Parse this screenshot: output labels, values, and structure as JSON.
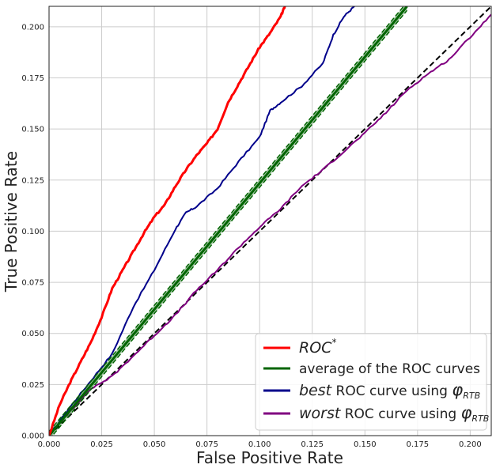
{
  "chart_data": {
    "type": "line",
    "title": "",
    "xlabel": "False Positive Rate",
    "ylabel": "True Positive Rate",
    "xlim": [
      0,
      0.21
    ],
    "ylim": [
      0,
      0.21
    ],
    "xticks": [
      "0.000",
      "0.025",
      "0.050",
      "0.075",
      "0.100",
      "0.125",
      "0.150",
      "0.175",
      "0.200"
    ],
    "yticks": [
      "0.000",
      "0.025",
      "0.050",
      "0.075",
      "0.100",
      "0.125",
      "0.150",
      "0.175",
      "0.200"
    ],
    "grid": true,
    "legend_position": "lower-right",
    "series": [
      {
        "name": "ROC*",
        "legend": [
          {
            "t": "ROC",
            "style": "it"
          },
          {
            "t": "*",
            "style": "sup"
          }
        ],
        "color": "#ff0000",
        "width": 3,
        "x": [
          0,
          0.005,
          0.01,
          0.015,
          0.02,
          0.025,
          0.03,
          0.035,
          0.04,
          0.045,
          0.05,
          0.055,
          0.06,
          0.065,
          0.07,
          0.075,
          0.08,
          0.085,
          0.09,
          0.095,
          0.1,
          0.105,
          0.11,
          0.112
        ],
        "y": [
          0,
          0.015,
          0.026,
          0.036,
          0.046,
          0.058,
          0.072,
          0.081,
          0.09,
          0.099,
          0.107,
          0.113,
          0.122,
          0.13,
          0.137,
          0.143,
          0.15,
          0.163,
          0.172,
          0.181,
          0.19,
          0.197,
          0.205,
          0.21
        ]
      },
      {
        "name": "average of the ROC curves",
        "legend": [
          {
            "t": "average of the ROC curves",
            "style": ""
          }
        ],
        "color": "#006400",
        "width": 3,
        "band": 0.002,
        "x": [
          0,
          0.02,
          0.04,
          0.06,
          0.08,
          0.1,
          0.12,
          0.14,
          0.16,
          0.17
        ],
        "y": [
          0,
          0.0247,
          0.0494,
          0.0741,
          0.0988,
          0.1235,
          0.1482,
          0.1729,
          0.1976,
          0.21
        ]
      },
      {
        "name": "best ROC curve using phi_RTB",
        "legend": [
          {
            "t": "best",
            "style": "it"
          },
          {
            "t": " ROC curve using ",
            "style": ""
          },
          {
            "t": "φ",
            "style": "it"
          },
          {
            "t": "RTB",
            "style": "sub"
          }
        ],
        "color": "#00008b",
        "width": 2,
        "x": [
          0,
          0.01,
          0.02,
          0.03,
          0.04,
          0.05,
          0.06,
          0.065,
          0.07,
          0.08,
          0.09,
          0.1,
          0.105,
          0.11,
          0.12,
          0.13,
          0.135,
          0.14,
          0.145
        ],
        "y": [
          0,
          0.014,
          0.027,
          0.04,
          0.063,
          0.081,
          0.101,
          0.109,
          0.112,
          0.121,
          0.134,
          0.146,
          0.159,
          0.163,
          0.171,
          0.182,
          0.196,
          0.205,
          0.21
        ]
      },
      {
        "name": "worst ROC curve using phi_RTB",
        "legend": [
          {
            "t": "worst",
            "style": "it"
          },
          {
            "t": " ROC curve using ",
            "style": ""
          },
          {
            "t": "φ",
            "style": "it"
          },
          {
            "t": "RTB",
            "style": "sub"
          }
        ],
        "color": "#800080",
        "width": 2,
        "x": [
          0,
          0.01,
          0.02,
          0.03,
          0.04,
          0.05,
          0.06,
          0.07,
          0.08,
          0.09,
          0.1,
          0.11,
          0.12,
          0.13,
          0.14,
          0.15,
          0.16,
          0.17,
          0.18,
          0.19,
          0.2,
          0.21
        ],
        "y": [
          0,
          0.012,
          0.023,
          0.029,
          0.039,
          0.049,
          0.059,
          0.071,
          0.081,
          0.092,
          0.102,
          0.111,
          0.122,
          0.13,
          0.139,
          0.148,
          0.158,
          0.169,
          0.177,
          0.184,
          0.195,
          0.206
        ]
      },
      {
        "name": "diagonal",
        "color": "#000000",
        "width": 2,
        "dash": true,
        "x": [
          0,
          0.21
        ],
        "y": [
          0,
          0.21
        ]
      }
    ]
  }
}
